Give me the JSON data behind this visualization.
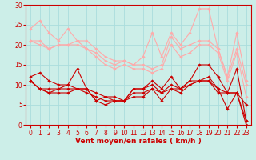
{
  "xlabel": "Vent moyen/en rafales ( km/h )",
  "background_color": "#cceee8",
  "grid_color": "#aadddd",
  "text_color": "#cc0000",
  "xlim": [
    -0.5,
    23.5
  ],
  "ylim": [
    0,
    30
  ],
  "yticks": [
    0,
    5,
    10,
    15,
    20,
    25,
    30
  ],
  "xticks": [
    0,
    1,
    2,
    3,
    4,
    5,
    6,
    7,
    8,
    9,
    10,
    11,
    12,
    13,
    14,
    15,
    16,
    17,
    18,
    19,
    20,
    21,
    22,
    23
  ],
  "series": [
    {
      "x": [
        0,
        1,
        2,
        3,
        4,
        5,
        6,
        7,
        8,
        9,
        10,
        11,
        12,
        13,
        14,
        15,
        16,
        17,
        18,
        19,
        20,
        21,
        22,
        23
      ],
      "y": [
        24,
        26,
        23,
        21,
        24,
        21,
        21,
        19,
        17,
        16,
        16,
        15,
        17,
        23,
        17,
        23,
        20,
        23,
        29,
        29,
        19,
        12,
        23,
        11
      ],
      "color": "#ffaaaa",
      "lw": 0.8
    },
    {
      "x": [
        0,
        1,
        2,
        3,
        4,
        5,
        6,
        7,
        8,
        9,
        10,
        11,
        12,
        13,
        14,
        15,
        16,
        17,
        18,
        19,
        20,
        21,
        22,
        23
      ],
      "y": [
        21,
        21,
        19,
        20,
        20,
        21,
        19,
        18,
        16,
        15,
        16,
        15,
        15,
        14,
        15,
        22,
        19,
        20,
        21,
        21,
        19,
        12,
        19,
        10
      ],
      "color": "#ffaaaa",
      "lw": 0.8
    },
    {
      "x": [
        0,
        1,
        2,
        3,
        4,
        5,
        6,
        7,
        8,
        9,
        10,
        11,
        12,
        13,
        14,
        15,
        16,
        17,
        18,
        19,
        20,
        21,
        22,
        23
      ],
      "y": [
        21,
        20,
        19,
        20,
        20,
        20,
        19,
        17,
        15,
        14,
        15,
        14,
        14,
        13,
        14,
        20,
        17,
        18,
        20,
        20,
        18,
        11,
        18,
        7
      ],
      "color": "#ffaaaa",
      "lw": 0.8
    },
    {
      "x": [
        0,
        1,
        2,
        3,
        4,
        5,
        6,
        7,
        8,
        9,
        10,
        11,
        12,
        13,
        14,
        15,
        16,
        17,
        18,
        19,
        20,
        21,
        22,
        23
      ],
      "y": [
        12,
        13,
        11,
        10,
        10,
        14,
        9,
        6,
        7,
        7,
        6,
        9,
        9,
        11,
        9,
        12,
        9,
        10,
        11,
        11,
        9,
        8,
        8,
        5
      ],
      "color": "#cc0000",
      "lw": 0.8
    },
    {
      "x": [
        0,
        1,
        2,
        3,
        4,
        5,
        6,
        7,
        8,
        9,
        10,
        11,
        12,
        13,
        14,
        15,
        16,
        17,
        18,
        19,
        20,
        21,
        22,
        23
      ],
      "y": [
        11,
        9,
        8,
        9,
        10,
        9,
        9,
        8,
        7,
        6,
        6,
        9,
        9,
        10,
        8,
        10,
        9,
        11,
        15,
        15,
        12,
        8,
        14,
        1
      ],
      "color": "#cc0000",
      "lw": 0.8
    },
    {
      "x": [
        0,
        1,
        2,
        3,
        4,
        5,
        6,
        7,
        8,
        9,
        10,
        11,
        12,
        13,
        14,
        15,
        16,
        17,
        18,
        19,
        20,
        21,
        22,
        23
      ],
      "y": [
        11,
        9,
        9,
        9,
        9,
        9,
        8,
        7,
        6,
        6,
        6,
        8,
        8,
        9,
        8,
        9,
        8,
        10,
        11,
        11,
        8,
        8,
        8,
        1
      ],
      "color": "#cc0000",
      "lw": 0.8
    },
    {
      "x": [
        0,
        1,
        2,
        3,
        4,
        5,
        6,
        7,
        8,
        9,
        10,
        11,
        12,
        13,
        14,
        15,
        16,
        17,
        18,
        19,
        20,
        21,
        22,
        23
      ],
      "y": [
        11,
        9,
        8,
        8,
        8,
        9,
        9,
        6,
        5,
        6,
        6,
        7,
        7,
        9,
        6,
        9,
        9,
        11,
        11,
        12,
        9,
        4,
        8,
        0
      ],
      "color": "#cc0000",
      "lw": 0.8
    }
  ],
  "marker": "D",
  "markersize": 1.8,
  "tick_fontsize": 5.5,
  "xlabel_fontsize": 6.5
}
